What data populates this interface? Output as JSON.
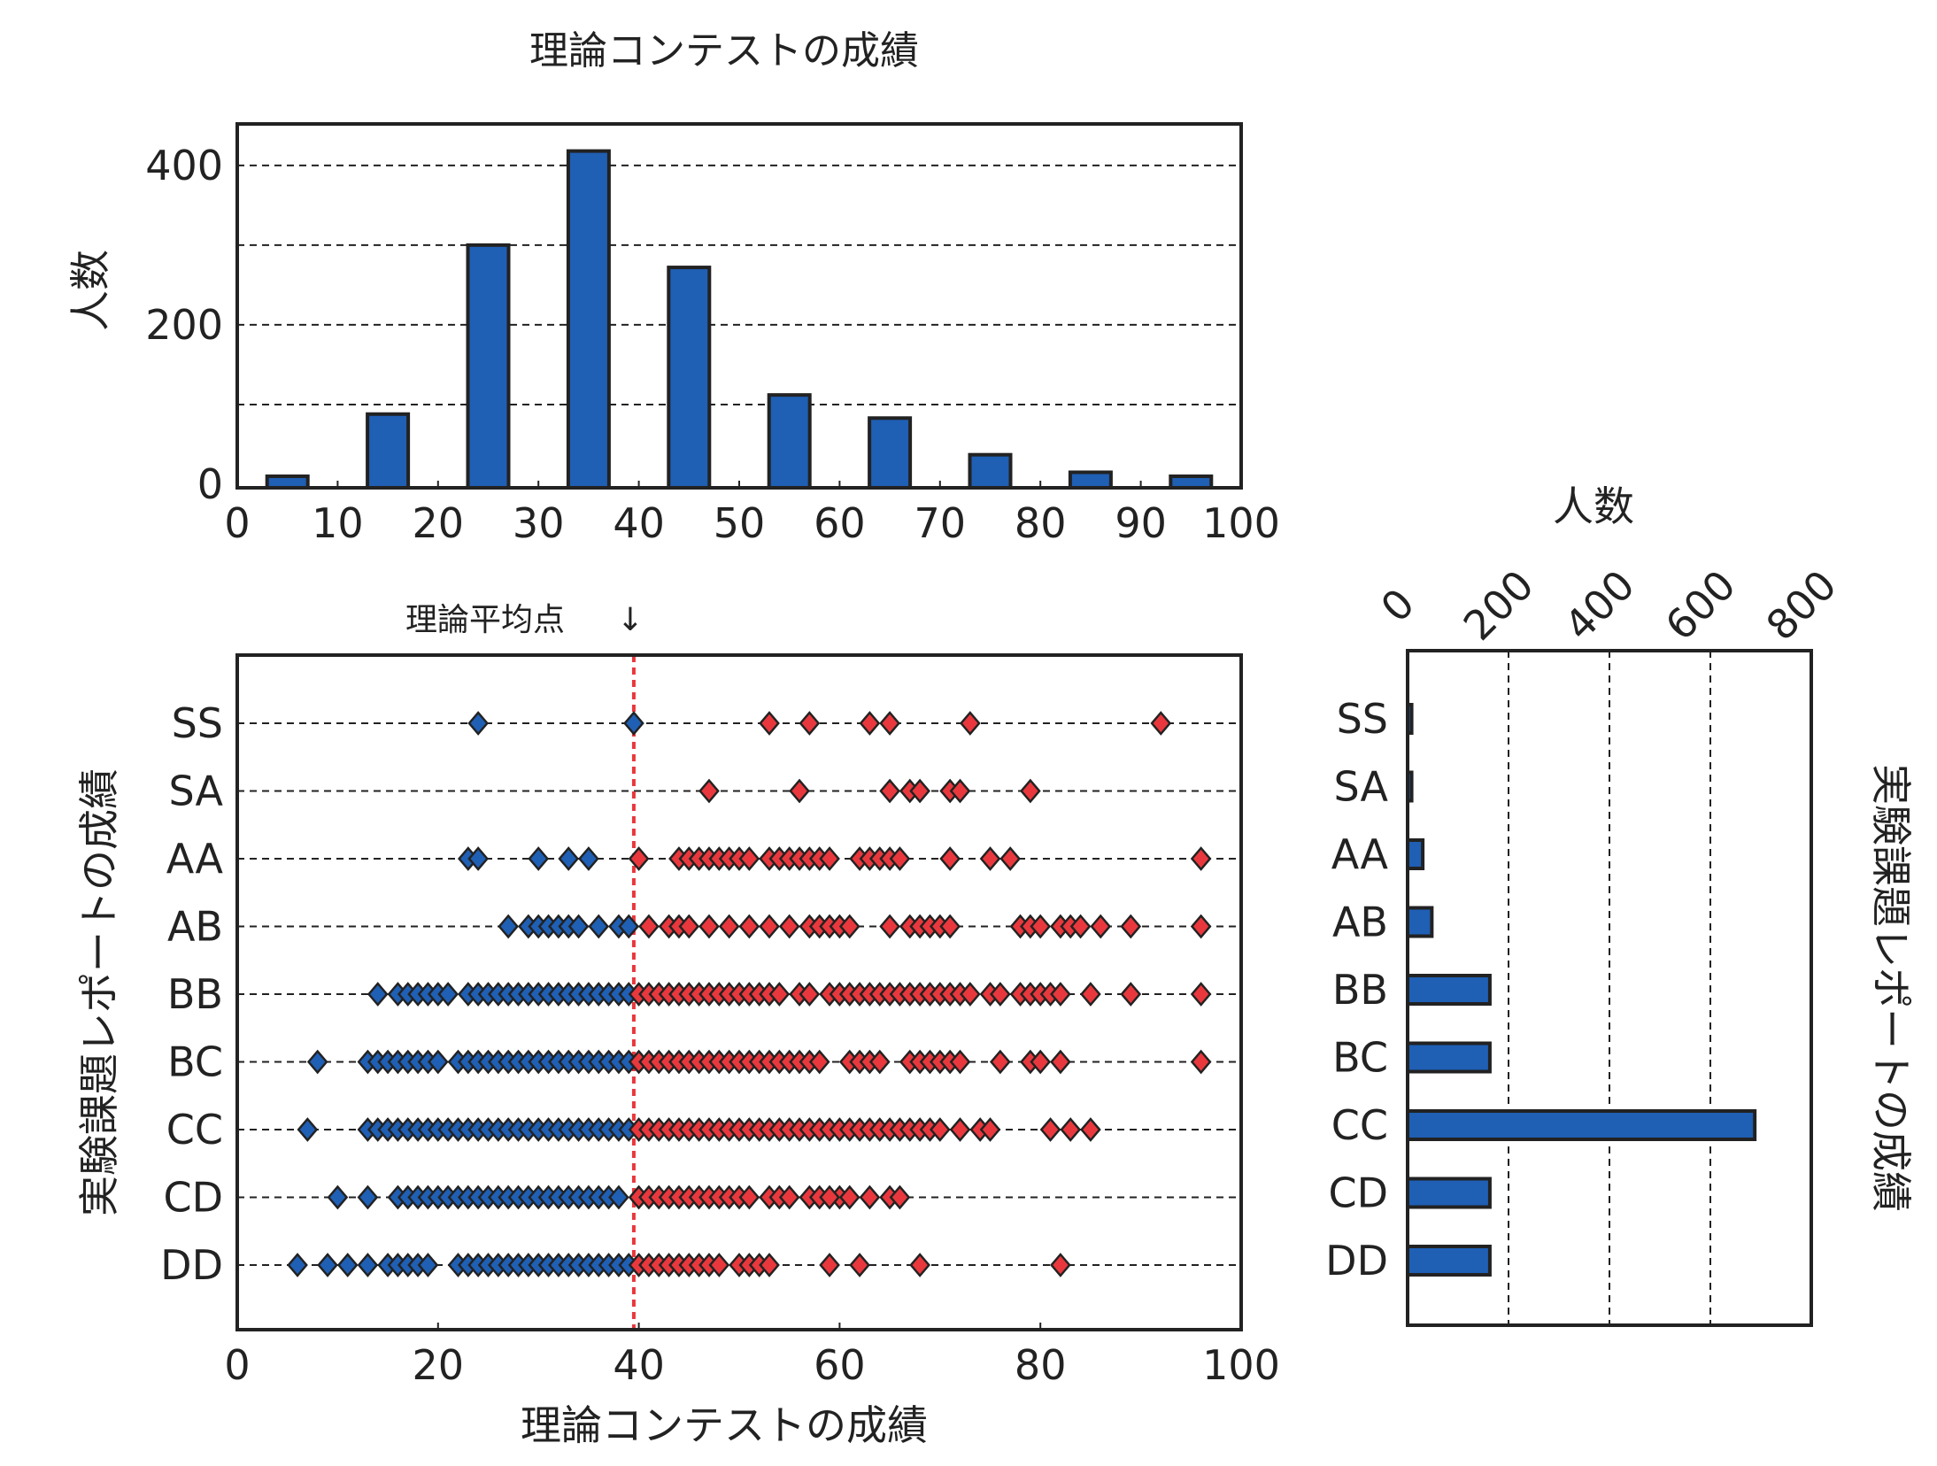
{
  "colors": {
    "bar": "#1f5fb4",
    "marker_below": "#1f5fb4",
    "marker_above": "#e8383d",
    "mean_line": "#e8383d",
    "edge": "#222222"
  },
  "chart_data": [
    {
      "type": "bar",
      "title": "理論コンテストの成績",
      "xlabel": "",
      "ylabel": "人数",
      "xlim": [
        0,
        100
      ],
      "ylim": [
        0,
        400
      ],
      "xticks": [
        "0",
        "10",
        "20",
        "30",
        "40",
        "50",
        "60",
        "70",
        "80",
        "90",
        "100"
      ],
      "yticks": [
        "0",
        "200",
        "400"
      ],
      "grid": "horizontal dashed",
      "bins": [
        5,
        15,
        25,
        35,
        45,
        55,
        65,
        75,
        85,
        95
      ],
      "values": [
        10,
        88,
        300,
        418,
        272,
        112,
        83,
        37,
        15,
        10
      ]
    },
    {
      "type": "scatter",
      "xlabel": "理論コンテストの成績",
      "ylabel": "実験課題レポートの成績",
      "xlim": [
        0,
        100
      ],
      "xticks": [
        "0",
        "20",
        "40",
        "60",
        "80",
        "100"
      ],
      "categories": [
        "SS",
        "SA",
        "AA",
        "AB",
        "BB",
        "BC",
        "CC",
        "CD",
        "DD"
      ],
      "mean_label": "理論平均点",
      "mean_arrow": "↓",
      "mean_value": 39.5,
      "grid": "horizontal dashed",
      "points": {
        "SS": [
          24,
          39.5,
          53,
          57,
          63,
          65,
          73,
          92
        ],
        "SA": [
          47,
          56,
          65,
          67,
          68,
          71,
          72,
          79
        ],
        "AA": [
          23,
          24,
          30,
          33,
          35,
          40,
          44,
          45,
          46,
          47,
          48,
          49,
          50,
          51,
          53,
          54,
          55,
          56,
          57,
          58,
          59,
          62,
          63,
          64,
          65,
          66,
          71,
          75,
          77,
          96
        ],
        "AB": [
          27,
          29,
          30,
          31,
          32,
          33,
          34,
          36,
          38,
          39,
          41,
          43,
          44,
          45,
          47,
          49,
          51,
          53,
          55,
          57,
          58,
          59,
          60,
          61,
          65,
          67,
          68,
          69,
          70,
          71,
          78,
          79,
          80,
          82,
          83,
          84,
          86,
          89,
          96
        ],
        "BB": [
          14,
          16,
          17,
          18,
          19,
          20,
          21,
          23,
          24,
          25,
          26,
          27,
          28,
          29,
          30,
          31,
          32,
          33,
          34,
          35,
          36,
          37,
          38,
          39,
          40,
          41,
          42,
          43,
          44,
          45,
          46,
          47,
          48,
          49,
          50,
          51,
          52,
          53,
          54,
          56,
          57,
          59,
          60,
          61,
          62,
          63,
          64,
          65,
          66,
          67,
          68,
          69,
          70,
          71,
          72,
          73,
          75,
          76,
          78,
          79,
          80,
          81,
          82,
          85,
          89,
          96
        ],
        "BC": [
          8,
          13,
          14,
          15,
          16,
          17,
          18,
          19,
          20,
          22,
          23,
          24,
          25,
          26,
          27,
          28,
          29,
          30,
          31,
          32,
          33,
          34,
          35,
          36,
          37,
          38,
          39,
          40,
          41,
          42,
          43,
          44,
          45,
          46,
          47,
          48,
          49,
          50,
          51,
          52,
          53,
          54,
          55,
          56,
          57,
          58,
          61,
          62,
          63,
          64,
          67,
          68,
          69,
          70,
          71,
          72,
          76,
          79,
          80,
          82,
          96
        ],
        "CC": [
          7,
          13,
          14,
          15,
          16,
          17,
          18,
          19,
          20,
          21,
          22,
          23,
          24,
          25,
          26,
          27,
          28,
          29,
          30,
          31,
          32,
          33,
          34,
          35,
          36,
          37,
          38,
          39,
          40,
          41,
          42,
          43,
          44,
          45,
          46,
          47,
          48,
          49,
          50,
          51,
          52,
          53,
          54,
          55,
          56,
          57,
          58,
          59,
          60,
          61,
          62,
          63,
          64,
          65,
          66,
          67,
          68,
          69,
          70,
          72,
          74,
          75,
          81,
          83,
          85
        ],
        "CD": [
          10,
          13,
          16,
          17,
          18,
          19,
          20,
          21,
          22,
          23,
          24,
          25,
          26,
          27,
          28,
          29,
          30,
          31,
          32,
          33,
          34,
          35,
          36,
          37,
          38,
          40,
          41,
          42,
          43,
          44,
          45,
          46,
          47,
          48,
          49,
          50,
          51,
          53,
          54,
          55,
          57,
          60,
          58,
          59,
          61,
          63,
          65,
          66
        ],
        "DD": [
          6,
          9,
          11,
          13,
          15,
          16,
          17,
          18,
          19,
          22,
          23,
          24,
          25,
          26,
          27,
          28,
          29,
          30,
          31,
          32,
          33,
          34,
          35,
          36,
          37,
          38,
          39,
          40,
          41,
          42,
          43,
          44,
          45,
          46,
          47,
          48,
          50,
          51,
          52,
          53,
          59,
          62,
          68,
          82
        ]
      }
    },
    {
      "type": "bar",
      "orientation": "horizontal",
      "xlabel": "人数",
      "ylabel": "実験課題レポートの成績",
      "xlim": [
        0,
        800
      ],
      "xticks": [
        "0",
        "200",
        "400",
        "600",
        "800"
      ],
      "grid": "vertical dashed",
      "categories": [
        "SS",
        "SA",
        "AA",
        "AB",
        "BB",
        "BC",
        "CC",
        "CD",
        "DD"
      ],
      "values": [
        8,
        8,
        30,
        48,
        163,
        163,
        688,
        163,
        163
      ]
    }
  ]
}
